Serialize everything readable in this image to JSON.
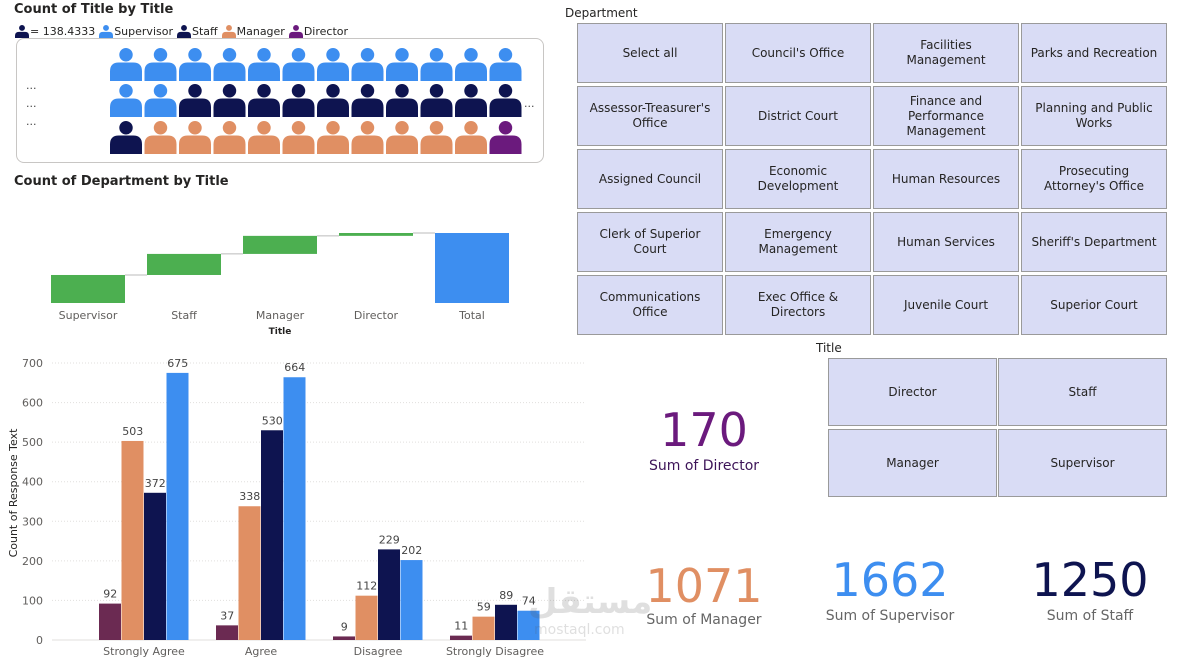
{
  "pictograph": {
    "title": "Count of Title by Title",
    "unit_label": "= 138.4333",
    "legend": [
      {
        "name": "Supervisor",
        "color": "#3d8ef0"
      },
      {
        "name": "Staff",
        "color": "#0e1450"
      },
      {
        "name": "Manager",
        "color": "#e08f63"
      },
      {
        "name": "Director",
        "color": "#6b1a7d"
      }
    ],
    "row_ellipsis": [
      "...",
      "...",
      "..."
    ],
    "right_ellipsis": "...",
    "rows": [
      [
        "Supervisor",
        "Supervisor",
        "Supervisor",
        "Supervisor",
        "Supervisor",
        "Supervisor",
        "Supervisor",
        "Supervisor",
        "Supervisor",
        "Supervisor",
        "Supervisor",
        "Supervisor"
      ],
      [
        "Supervisor",
        "Supervisor",
        "Staff",
        "Staff",
        "Staff",
        "Staff",
        "Staff",
        "Staff",
        "Staff",
        "Staff",
        "Staff",
        "Staff"
      ],
      [
        "Staff",
        "Manager",
        "Manager",
        "Manager",
        "Manager",
        "Manager",
        "Manager",
        "Manager",
        "Manager",
        "Manager",
        "Manager",
        "Director"
      ]
    ],
    "unit_value": 138.4333
  },
  "waterfall": {
    "title": "Count of Department by Title",
    "xlabel": "Title",
    "chart_data": {
      "type": "bar",
      "subtype": "waterfall",
      "categories": [
        "Supervisor",
        "Staff",
        "Manager",
        "Director",
        "Total"
      ],
      "values": [
        1662,
        1250,
        1071,
        170,
        4153
      ],
      "increase_color": "#4caf50",
      "total_color": "#3d8ef0"
    }
  },
  "clustered": {
    "ylabel": "Count of Response Text",
    "chart_data": {
      "type": "bar",
      "categories": [
        "Strongly Agree",
        "Agree",
        "Disagree",
        "Strongly Disagree"
      ],
      "series": [
        {
          "color": "#6b2a52",
          "values": [
            92,
            37,
            9,
            11
          ]
        },
        {
          "color": "#e08f63",
          "values": [
            503,
            338,
            112,
            59
          ]
        },
        {
          "color": "#0e1450",
          "values": [
            372,
            530,
            229,
            89
          ]
        },
        {
          "color": "#3d8ef0",
          "values": [
            675,
            664,
            202,
            74
          ]
        }
      ],
      "yticks": [
        0,
        100,
        200,
        300,
        400,
        500,
        600,
        700
      ],
      "ylim": [
        0,
        720
      ]
    }
  },
  "department_slicer": {
    "title": "Department",
    "items": [
      "Select all",
      "Council's Office",
      "Facilities Management",
      "Parks and Recreation",
      "Assessor-Treasurer's Office",
      "District Court",
      "Finance and Performance Management",
      "Planning and Public Works",
      "Assigned Council",
      "Economic Development",
      "Human Resources",
      "Prosecuting Attorney's Office",
      "Clerk of Superior Court",
      "Emergency Management",
      "Human Services",
      "Sheriff's Department",
      "Communications Office",
      "Exec Office & Directors",
      "Juvenile Court",
      "Superior Court"
    ]
  },
  "title_slicer": {
    "title": "Title",
    "items": [
      "Director",
      "Staff",
      "Manager",
      "Supervisor"
    ]
  },
  "kpis": [
    {
      "value": "170",
      "label": "Sum of Director",
      "color": "#6b1a7d"
    },
    {
      "value": "1071",
      "label": "Sum of Manager",
      "color": "#e08f63"
    },
    {
      "value": "1662",
      "label": "Sum of Supervisor",
      "color": "#3d8ef0"
    },
    {
      "value": "1250",
      "label": "Sum of Staff",
      "color": "#0e1450"
    }
  ],
  "watermark": {
    "line1": "مستقل",
    "line2": "mostaql.com"
  }
}
